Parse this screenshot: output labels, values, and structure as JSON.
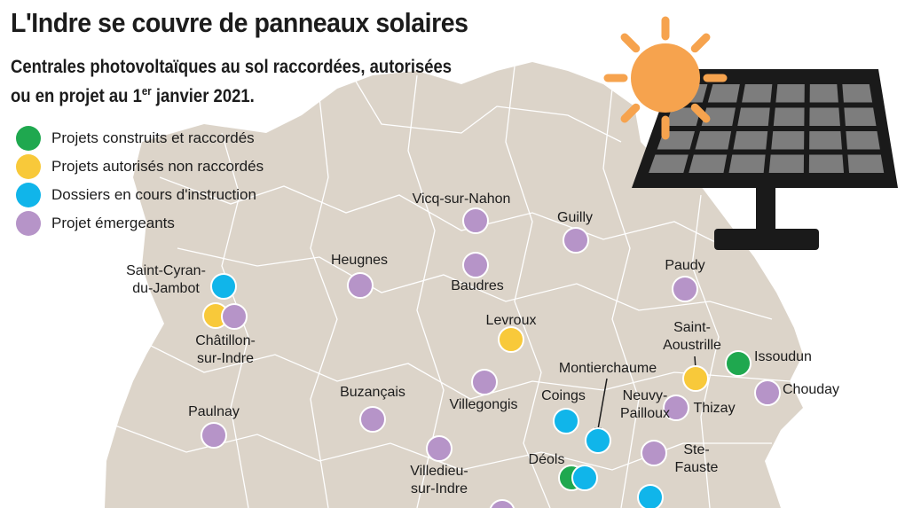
{
  "title": "L'Indre se couvre de panneaux solaires",
  "subtitle": {
    "line1": "Centrales photovoltaïques au sol raccordées, autorisées",
    "line2_prefix": "ou en projet au 1",
    "line2_sup": "er",
    "line2_suffix": " janvier 2021."
  },
  "colors": {
    "land": "#dcd4c9",
    "border": "#ffffff",
    "built": "#1fa84f",
    "authorized": "#f8c93a",
    "instruction": "#10b5ea",
    "emerging": "#b694c8",
    "sun": "#f6a34e",
    "panel_frame": "#1a1a1a",
    "panel_cell": "#7d7d7d"
  },
  "legend": [
    {
      "status": "built",
      "label": "Projets construits et raccordés"
    },
    {
      "status": "authorized",
      "label": "Projets autorisés non raccordés"
    },
    {
      "status": "instruction",
      "label": "Dossiers en cours d'instruction"
    },
    {
      "status": "emerging",
      "label": "Projet émergeants"
    }
  ],
  "towns": [
    {
      "name": "Vicq-sur-Nahon",
      "lines": [
        "Vicq-sur-Nahon"
      ],
      "sites": [
        "emerging"
      ]
    },
    {
      "name": "Guilly",
      "lines": [
        "Guilly"
      ],
      "sites": [
        "emerging"
      ]
    },
    {
      "name": "Heugnes",
      "lines": [
        "Heugnes"
      ],
      "sites": [
        "emerging"
      ]
    },
    {
      "name": "Baudres",
      "lines": [
        "Baudres"
      ],
      "sites": [
        "emerging"
      ]
    },
    {
      "name": "Paudy",
      "lines": [
        "Paudy"
      ],
      "sites": [
        "emerging"
      ]
    },
    {
      "name": "Saint-Cyran-du-Jambot",
      "lines": [
        "Saint-Cyran-",
        "du-Jambot"
      ],
      "sites": [
        "instruction"
      ]
    },
    {
      "name": "Châtillon-sur-Indre",
      "lines": [
        "Châtillon-",
        "sur-Indre"
      ],
      "sites": [
        "authorized",
        "emerging"
      ]
    },
    {
      "name": "Levroux",
      "lines": [
        "Levroux"
      ],
      "sites": [
        "authorized"
      ]
    },
    {
      "name": "Saint-Aoustrille",
      "lines": [
        "Saint-",
        "Aoustrille"
      ],
      "sites": [
        "authorized"
      ]
    },
    {
      "name": "Issoudun",
      "lines": [
        "Issoudun"
      ],
      "sites": [
        "built"
      ]
    },
    {
      "name": "Chouday",
      "lines": [
        "Chouday"
      ],
      "sites": [
        "emerging"
      ]
    },
    {
      "name": "Montierchaume",
      "lines": [
        "Montierchaume"
      ],
      "sites": [
        "instruction"
      ]
    },
    {
      "name": "Coings",
      "lines": [
        "Coings"
      ],
      "sites": [
        "instruction"
      ]
    },
    {
      "name": "Neuvy-Pailloux",
      "lines": [
        "Neuvy-",
        "Pailloux"
      ],
      "sites": [
        "emerging"
      ]
    },
    {
      "name": "Thizay",
      "lines": [
        "Thizay"
      ],
      "sites": []
    },
    {
      "name": "Buzançais",
      "lines": [
        "Buzançais"
      ],
      "sites": [
        "emerging"
      ]
    },
    {
      "name": "Villegongis",
      "lines": [
        "Villegongis"
      ],
      "sites": [
        "emerging"
      ]
    },
    {
      "name": "Paulnay",
      "lines": [
        "Paulnay"
      ],
      "sites": [
        "emerging"
      ]
    },
    {
      "name": "Villedieu-sur-Indre",
      "lines": [
        "Villedieu-",
        "sur-Indre"
      ],
      "sites": [
        "emerging"
      ]
    },
    {
      "name": "Déols",
      "lines": [
        "Déols"
      ],
      "sites": [
        "built",
        "instruction"
      ]
    },
    {
      "name": "Ste-Fauste",
      "lines": [
        "Ste-",
        "Fauste"
      ],
      "sites": [
        "emerging"
      ]
    },
    {
      "name": "",
      "lines": [],
      "sites": [
        "instruction"
      ]
    },
    {
      "name": "",
      "lines": [],
      "sites": [
        "emerging"
      ]
    }
  ]
}
